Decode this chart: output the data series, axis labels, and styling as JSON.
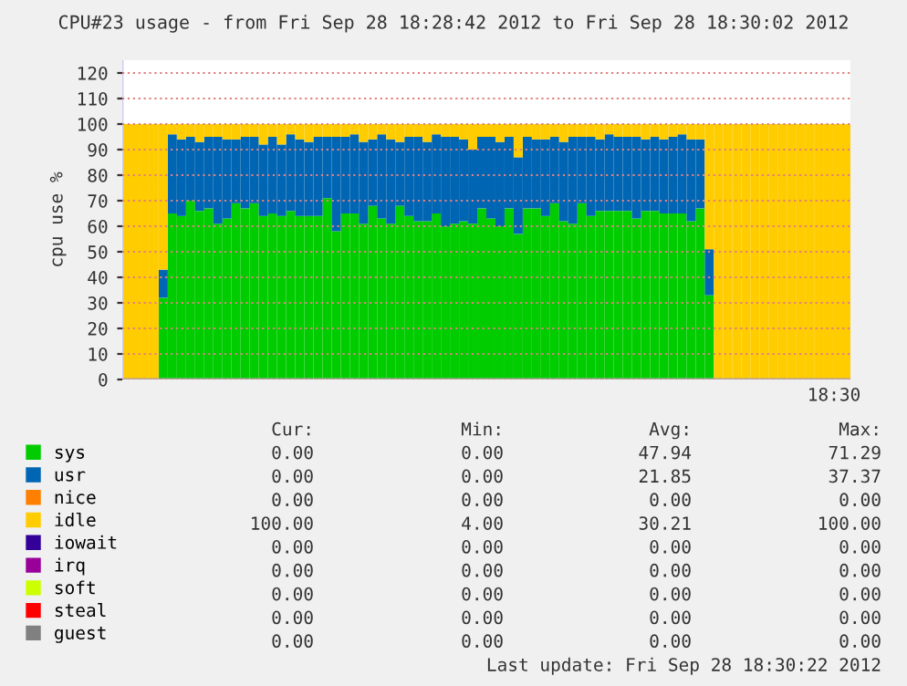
{
  "chart_data": {
    "type": "bar",
    "stacked": true,
    "title": "CPU#23 usage - from Fri Sep 28 18:28:42 2012 to Fri Sep 28 18:30:02 2012",
    "ylabel": "cpu use %",
    "categories": [
      null,
      null,
      null,
      null,
      null,
      null,
      null,
      null,
      null,
      null,
      null,
      null,
      null,
      null,
      null,
      null,
      null,
      null,
      null,
      null,
      null,
      null,
      null,
      null,
      null,
      null,
      null,
      null,
      null,
      null,
      null,
      null,
      null,
      null,
      null,
      null,
      null,
      null,
      null,
      null,
      null,
      null,
      null,
      null,
      null,
      null,
      null,
      null,
      null,
      null,
      null,
      null,
      null,
      null,
      null,
      null,
      null,
      null,
      null,
      null,
      null,
      null,
      null,
      null,
      null,
      null,
      null,
      null,
      null,
      null,
      null,
      null,
      null,
      null,
      null,
      null,
      null,
      null,
      null,
      null
    ],
    "series": [
      {
        "name": "sys",
        "color": "#00cc00",
        "values": [
          0,
          0,
          0,
          0,
          32,
          65,
          64,
          70,
          66,
          67,
          61,
          63,
          69,
          67,
          69,
          64,
          65,
          64,
          66,
          64,
          64,
          64,
          71,
          58,
          65,
          65,
          61,
          68,
          63,
          61,
          68,
          64,
          62,
          62,
          65,
          60,
          61,
          62,
          61,
          67,
          63,
          60,
          67,
          57,
          67,
          67,
          64,
          69,
          62,
          61,
          69,
          64,
          66,
          66,
          66,
          66,
          63,
          66,
          66,
          65,
          65,
          65,
          62,
          67,
          33,
          0,
          0,
          0,
          0,
          0,
          0,
          0,
          0,
          0,
          0,
          0,
          0,
          0,
          0,
          0
        ]
      },
      {
        "name": "usr",
        "color": "#0066b3",
        "values": [
          0,
          0,
          0,
          0,
          11,
          31,
          30,
          25,
          27,
          28,
          34,
          31,
          25,
          28,
          26,
          28,
          30,
          28,
          30,
          30,
          29,
          31,
          24,
          37,
          30,
          31,
          32,
          26,
          33,
          33,
          25,
          31,
          33,
          31,
          31,
          35,
          34,
          32,
          29,
          28,
          32,
          33,
          28,
          30,
          28,
          27,
          30,
          26,
          31,
          34,
          26,
          31,
          28,
          30,
          29,
          29,
          32,
          28,
          29,
          29,
          30,
          31,
          32,
          27,
          18,
          0,
          0,
          0,
          0,
          0,
          0,
          0,
          0,
          0,
          0,
          0,
          0,
          0,
          0,
          0
        ]
      },
      {
        "name": "nice",
        "color": "#ff8000",
        "values": [
          0,
          0,
          0,
          0,
          0,
          0,
          0,
          0,
          0,
          0,
          0,
          0,
          0,
          0,
          0,
          0,
          0,
          0,
          0,
          0,
          0,
          0,
          0,
          0,
          0,
          0,
          0,
          0,
          0,
          0,
          0,
          0,
          0,
          0,
          0,
          0,
          0,
          0,
          0,
          0,
          0,
          0,
          0,
          0,
          0,
          0,
          0,
          0,
          0,
          0,
          0,
          0,
          0,
          0,
          0,
          0,
          0,
          0,
          0,
          0,
          0,
          0,
          0,
          0,
          0,
          0,
          0,
          0,
          0,
          0,
          0,
          0,
          0,
          0,
          0,
          0,
          0,
          0,
          0,
          0
        ]
      },
      {
        "name": "idle",
        "color": "#ffcc00",
        "values": [
          100,
          100,
          100,
          100,
          57,
          4,
          6,
          5,
          7,
          5,
          5,
          6,
          6,
          5,
          5,
          8,
          5,
          8,
          4,
          6,
          7,
          5,
          5,
          5,
          5,
          4,
          7,
          6,
          4,
          6,
          7,
          5,
          5,
          7,
          4,
          5,
          5,
          6,
          10,
          5,
          5,
          7,
          5,
          13,
          5,
          6,
          6,
          5,
          7,
          5,
          5,
          5,
          6,
          4,
          5,
          5,
          5,
          6,
          5,
          6,
          5,
          4,
          6,
          6,
          49,
          100,
          100,
          100,
          100,
          100,
          100,
          100,
          100,
          100,
          100,
          100,
          100,
          100,
          100,
          100
        ]
      },
      {
        "name": "iowait",
        "color": "#330099",
        "values": [
          0,
          0,
          0,
          0,
          0,
          0,
          0,
          0,
          0,
          0,
          0,
          0,
          0,
          0,
          0,
          0,
          0,
          0,
          0,
          0,
          0,
          0,
          0,
          0,
          0,
          0,
          0,
          0,
          0,
          0,
          0,
          0,
          0,
          0,
          0,
          0,
          0,
          0,
          0,
          0,
          0,
          0,
          0,
          0,
          0,
          0,
          0,
          0,
          0,
          0,
          0,
          0,
          0,
          0,
          0,
          0,
          0,
          0,
          0,
          0,
          0,
          0,
          0,
          0,
          0,
          0,
          0,
          0,
          0,
          0,
          0,
          0,
          0,
          0,
          0,
          0,
          0,
          0,
          0,
          0
        ]
      },
      {
        "name": "irq",
        "color": "#990099",
        "values": [
          0,
          0,
          0,
          0,
          0,
          0,
          0,
          0,
          0,
          0,
          0,
          0,
          0,
          0,
          0,
          0,
          0,
          0,
          0,
          0,
          0,
          0,
          0,
          0,
          0,
          0,
          0,
          0,
          0,
          0,
          0,
          0,
          0,
          0,
          0,
          0,
          0,
          0,
          0,
          0,
          0,
          0,
          0,
          0,
          0,
          0,
          0,
          0,
          0,
          0,
          0,
          0,
          0,
          0,
          0,
          0,
          0,
          0,
          0,
          0,
          0,
          0,
          0,
          0,
          0,
          0,
          0,
          0,
          0,
          0,
          0,
          0,
          0,
          0,
          0,
          0,
          0,
          0,
          0,
          0
        ]
      },
      {
        "name": "soft",
        "color": "#ccff00",
        "values": [
          0,
          0,
          0,
          0,
          0,
          0,
          0,
          0,
          0,
          0,
          0,
          0,
          0,
          0,
          0,
          0,
          0,
          0,
          0,
          0,
          0,
          0,
          0,
          0,
          0,
          0,
          0,
          0,
          0,
          0,
          0,
          0,
          0,
          0,
          0,
          0,
          0,
          0,
          0,
          0,
          0,
          0,
          0,
          0,
          0,
          0,
          0,
          0,
          0,
          0,
          0,
          0,
          0,
          0,
          0,
          0,
          0,
          0,
          0,
          0,
          0,
          0,
          0,
          0,
          0,
          0,
          0,
          0,
          0,
          0,
          0,
          0,
          0,
          0,
          0,
          0,
          0,
          0,
          0,
          0
        ]
      },
      {
        "name": "steal",
        "color": "#ff0000",
        "values": [
          0,
          0,
          0,
          0,
          0,
          0,
          0,
          0,
          0,
          0,
          0,
          0,
          0,
          0,
          0,
          0,
          0,
          0,
          0,
          0,
          0,
          0,
          0,
          0,
          0,
          0,
          0,
          0,
          0,
          0,
          0,
          0,
          0,
          0,
          0,
          0,
          0,
          0,
          0,
          0,
          0,
          0,
          0,
          0,
          0,
          0,
          0,
          0,
          0,
          0,
          0,
          0,
          0,
          0,
          0,
          0,
          0,
          0,
          0,
          0,
          0,
          0,
          0,
          0,
          0,
          0,
          0,
          0,
          0,
          0,
          0,
          0,
          0,
          0,
          0,
          0,
          0,
          0,
          0,
          0
        ]
      },
      {
        "name": "guest",
        "color": "#808080",
        "values": [
          0,
          0,
          0,
          0,
          0,
          0,
          0,
          0,
          0,
          0,
          0,
          0,
          0,
          0,
          0,
          0,
          0,
          0,
          0,
          0,
          0,
          0,
          0,
          0,
          0,
          0,
          0,
          0,
          0,
          0,
          0,
          0,
          0,
          0,
          0,
          0,
          0,
          0,
          0,
          0,
          0,
          0,
          0,
          0,
          0,
          0,
          0,
          0,
          0,
          0,
          0,
          0,
          0,
          0,
          0,
          0,
          0,
          0,
          0,
          0,
          0,
          0,
          0,
          0,
          0,
          0,
          0,
          0,
          0,
          0,
          0,
          0,
          0,
          0,
          0,
          0,
          0,
          0,
          0,
          0
        ]
      }
    ],
    "ylim": [
      0,
      125
    ],
    "yticks": [
      0,
      10,
      20,
      30,
      40,
      50,
      60,
      70,
      80,
      90,
      100,
      110,
      120
    ],
    "grid": "y",
    "legend": "bottom",
    "annotations": [
      "18:30",
      "Cur:",
      "Min:",
      "Avg:",
      "Max:",
      "0.00",
      "0.00",
      "47.94",
      "71.29",
      "0.00",
      "0.00",
      "21.85",
      "37.37",
      "0.00",
      "0.00",
      "0.00",
      "0.00",
      "100.00",
      "4.00",
      "30.21",
      "100.00",
      "0.00",
      "0.00",
      "0.00",
      "0.00",
      "0.00",
      "0.00",
      "0.00",
      "0.00",
      "0.00",
      "0.00",
      "0.00",
      "0.00",
      "0.00",
      "0.00",
      "0.00",
      "0.00",
      "0.00",
      "0.00",
      "0.00",
      "0.00",
      "Last update: Fri Sep 28 18:30:22 2012"
    ]
  }
}
